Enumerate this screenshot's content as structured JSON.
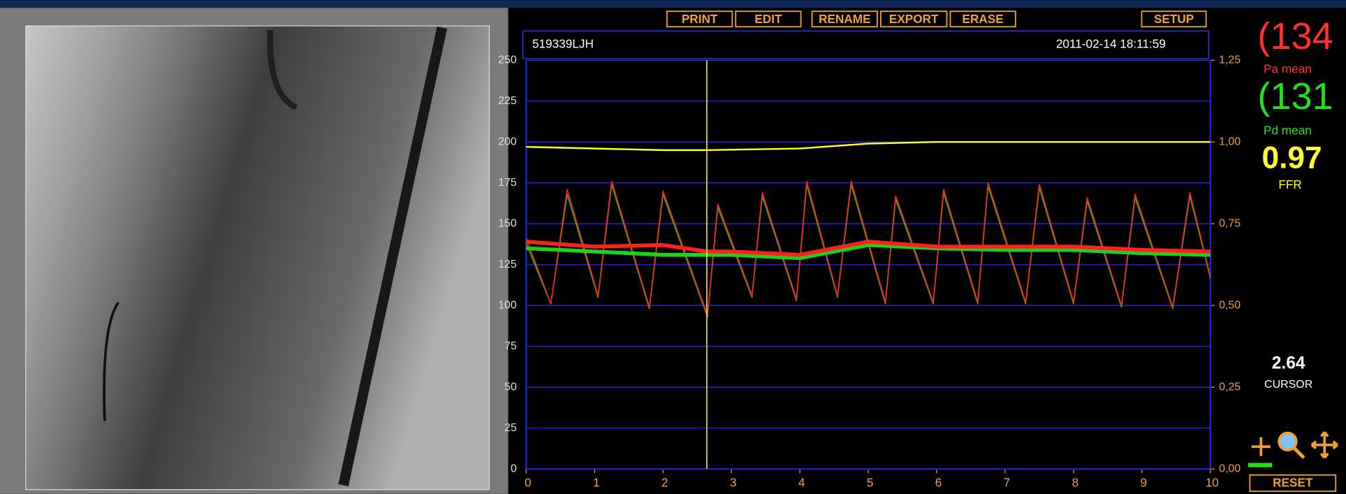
{
  "toolbar": {
    "buttons": [
      "PRINT",
      "EDIT",
      "RENAME",
      "EXPORT",
      "ERASE",
      "SETUP"
    ],
    "reset": "RESET"
  },
  "header": {
    "patient": "519339LJH",
    "datetime": "2011-02-14 18:11:59"
  },
  "readouts": {
    "pa_mean": "(134",
    "pd_mean": "(131",
    "ffr": "0.97"
  },
  "chart_data": {
    "type": "line",
    "x": [
      0,
      0.36,
      0.6,
      1.05,
      1.25,
      1.8,
      2.0,
      2.65,
      2.8,
      3.3,
      3.45,
      3.95,
      4.1,
      4.55,
      4.75,
      5.25,
      5.4,
      5.95,
      6.1,
      6.6,
      6.75,
      7.3,
      7.5,
      8.0,
      8.2,
      8.7,
      8.9,
      9.45,
      9.7,
      10
    ],
    "series": [
      {
        "color": "#20c020",
        "values": [
          138,
          101,
          168,
          105,
          174,
          98,
          168,
          93,
          160,
          105,
          167,
          103,
          174,
          105,
          174,
          101,
          165,
          101,
          169,
          101,
          173,
          101,
          172,
          101,
          164,
          99,
          166,
          98,
          167,
          117
        ]
      },
      {
        "color": "#ff2020",
        "values": [
          141,
          101,
          171,
          106,
          176,
          99,
          170,
          94,
          162,
          106,
          169,
          104,
          176,
          106,
          176,
          102,
          167,
          102,
          171,
          102,
          175,
          102,
          174,
          102,
          166,
          100,
          168,
          99,
          169,
          118
        ]
      },
      {
        "name": "Pd mean",
        "color": "#20d020",
        "x": [
          0,
          1,
          2,
          2.65,
          3,
          4,
          5,
          6,
          7,
          8,
          9,
          10
        ],
        "values": [
          135,
          133,
          131,
          131,
          131,
          129,
          137,
          135,
          134,
          134,
          132,
          131
        ]
      },
      {
        "name": "Pa mean",
        "color": "#ff2020",
        "x": [
          0,
          1,
          2,
          2.65,
          3,
          4,
          5,
          6,
          7,
          8,
          9,
          10
        ],
        "values": [
          139,
          136,
          137,
          133,
          133,
          131,
          139,
          136,
          136,
          136,
          134,
          133
        ]
      },
      {
        "name": "FFR",
        "color": "#ffff30",
        "axis": "y2",
        "x": [
          0,
          2,
          2.65,
          4,
          5,
          6,
          10
        ],
        "values": [
          0.985,
          0.975,
          0.975,
          0.98,
          0.995,
          1.0,
          1.0
        ]
      }
    ],
    "xlim": [
      0,
      10
    ],
    "xticks": [
      0,
      1,
      2,
      3,
      4,
      5,
      6,
      7,
      8,
      9,
      10
    ],
    "ylim": [
      0,
      250
    ],
    "yticks": [
      0,
      25,
      50,
      75,
      100,
      125,
      150,
      175,
      200,
      225,
      250
    ],
    "y2lim": [
      0,
      1.25
    ],
    "y2ticks": [
      {
        "value": 0,
        "label": "0,00"
      },
      {
        "value": 0.25,
        "label": "0,25"
      },
      {
        "value": 0.5,
        "label": "0,50"
      },
      {
        "value": 0.75,
        "label": "0,75"
      },
      {
        "value": 1.0,
        "label": "1,00"
      },
      {
        "value": 1.25,
        "label": "1,25"
      }
    ],
    "grid": true,
    "cursor": 2.64,
    "cursor_label": "CURSOR"
  }
}
